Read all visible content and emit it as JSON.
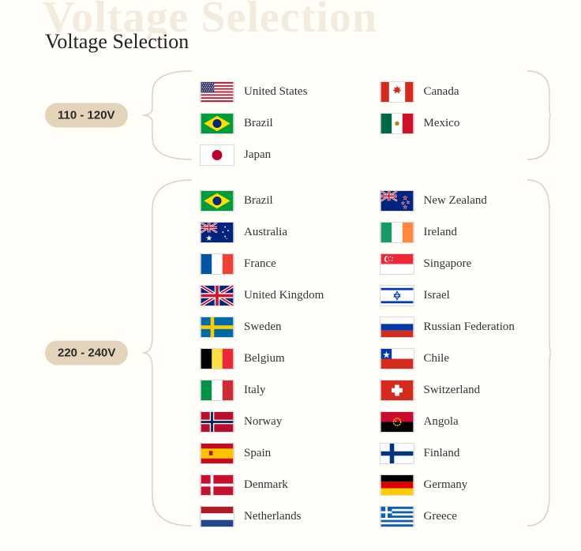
{
  "colors": {
    "bg": "#fffef9",
    "ghost": "rgba(213,187,150,.28)",
    "badge_bg": "#e3d4bb",
    "badge_text": "#2a2a2a",
    "text": "#333",
    "bracket": "#d7d2c5"
  },
  "ghost_title": "Voltage Selection",
  "title": "Voltage Selection",
  "groups": [
    {
      "label": "110 - 120V",
      "countries": [
        {
          "name": "United States",
          "flag": "us"
        },
        {
          "name": "Canada",
          "flag": "ca"
        },
        {
          "name": "Brazil",
          "flag": "br"
        },
        {
          "name": "Mexico",
          "flag": "mx"
        },
        {
          "name": "Japan",
          "flag": "jp"
        }
      ]
    },
    {
      "label": "220 - 240V",
      "countries": [
        {
          "name": "Brazil",
          "flag": "br"
        },
        {
          "name": "New Zealand",
          "flag": "nz"
        },
        {
          "name": "Australia",
          "flag": "au"
        },
        {
          "name": "Ireland",
          "flag": "ie"
        },
        {
          "name": "France",
          "flag": "fr"
        },
        {
          "name": "Singapore",
          "flag": "sg"
        },
        {
          "name": "United Kingdom",
          "flag": "gb"
        },
        {
          "name": "Israel",
          "flag": "il"
        },
        {
          "name": "Sweden",
          "flag": "se"
        },
        {
          "name": "Russian Federation",
          "flag": "ru"
        },
        {
          "name": "Belgium",
          "flag": "be"
        },
        {
          "name": "Chile",
          "flag": "cl"
        },
        {
          "name": "Italy",
          "flag": "it"
        },
        {
          "name": "Switzerland",
          "flag": "ch"
        },
        {
          "name": "Norway",
          "flag": "no"
        },
        {
          "name": "Angola",
          "flag": "ao"
        },
        {
          "name": "Spain",
          "flag": "es"
        },
        {
          "name": "Finland",
          "flag": "fi"
        },
        {
          "name": "Denmark",
          "flag": "dk"
        },
        {
          "name": "Germany",
          "flag": "de"
        },
        {
          "name": "Netherlands",
          "flag": "nl"
        },
        {
          "name": "Greece",
          "flag": "gr"
        }
      ]
    }
  ]
}
